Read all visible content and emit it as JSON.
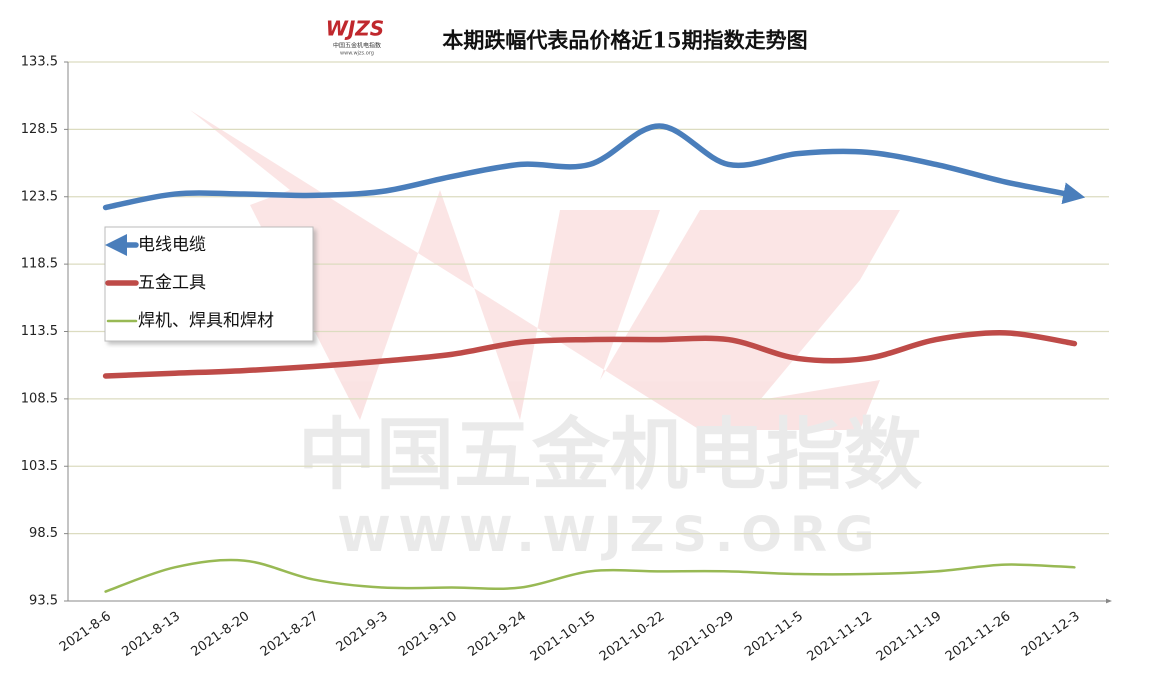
{
  "chart_data": {
    "type": "line",
    "title": "本期跌幅代表品价格近15期指数走势图",
    "logo": {
      "text": "WJZS",
      "subtitle": "中国五金机电指数",
      "url": "www.wjzs.org"
    },
    "watermark": [
      "中国五金机电指数",
      "WWW.WJZS.ORG"
    ],
    "categories": [
      "2021-8-6",
      "2021-8-13",
      "2021-8-20",
      "2021-8-27",
      "2021-9-3",
      "2021-9-10",
      "2021-9-24",
      "2021-10-15",
      "2021-10-22",
      "2021-10-29",
      "2021-11-5",
      "2021-11-12",
      "2021-11-19",
      "2021-11-26",
      "2021-12-3"
    ],
    "series": [
      {
        "name": "电线电缆",
        "color": "#4a7ebb",
        "values": [
          122.7,
          123.7,
          123.7,
          123.6,
          123.9,
          125.0,
          125.9,
          125.9,
          128.75,
          125.9,
          126.7,
          126.8,
          125.9,
          124.6,
          123.6
        ]
      },
      {
        "name": "五金工具",
        "color": "#be4b48",
        "values": [
          110.2,
          110.4,
          110.6,
          110.9,
          111.3,
          111.8,
          112.7,
          112.9,
          112.9,
          112.9,
          111.5,
          111.5,
          112.9,
          113.4,
          112.6
        ]
      },
      {
        "name": "焊机、焊具和焊材",
        "color": "#98b954",
        "values": [
          94.2,
          96.0,
          96.5,
          95.1,
          94.5,
          94.5,
          94.5,
          95.7,
          95.7,
          95.7,
          95.5,
          95.5,
          95.7,
          96.2,
          96.0
        ]
      }
    ],
    "ylim": [
      93.5,
      133.5
    ],
    "yticks": [
      93.5,
      98.5,
      103.5,
      108.5,
      113.5,
      118.5,
      123.5,
      128.5,
      133.5
    ],
    "grid": true
  }
}
